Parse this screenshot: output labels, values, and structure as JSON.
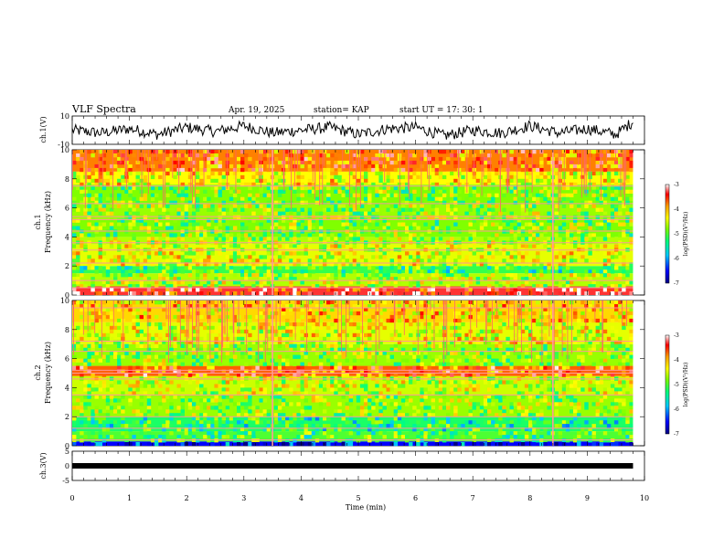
{
  "header": {
    "title": "VLF Spectra",
    "date": "Apr. 19, 2025",
    "station": "station= KAP",
    "start": "start  UT  =   17: 30: 1"
  },
  "colors": {
    "spectrum_scale": [
      "#000080",
      "#0000ff",
      "#00c8ff",
      "#00ff80",
      "#80ff00",
      "#ffff00",
      "#ffa000",
      "#ff0000",
      "#ffffff"
    ],
    "trace": "#000000"
  },
  "chart_data": [
    {
      "type": "line",
      "panel": "ch1-waveform",
      "ylabel": "ch.1(V)",
      "ylim": [
        -10,
        10
      ],
      "yticks": [
        "10",
        "-10"
      ],
      "xlim": [
        0,
        10
      ],
      "series": [
        {
          "x": [
            0,
            0.5,
            1,
            1.5,
            2,
            2.5,
            3,
            3.5,
            4,
            4.5,
            5,
            5.5,
            6,
            6.5,
            7,
            7.5,
            8,
            8.5,
            9,
            9.5,
            9.8
          ],
          "values": [
            0,
            -2,
            1,
            -3,
            2,
            -1,
            3,
            -2,
            0,
            2,
            -3,
            1,
            2,
            -4,
            0,
            -2,
            3,
            -2,
            1,
            -3,
            6
          ]
        }
      ]
    },
    {
      "type": "heatmap",
      "panel": "ch1-spectrogram",
      "ylabel": "ch.1\nFrequency (kHz)",
      "ylabel_line1": "ch.1",
      "ylabel_line2": "Frequency (kHz)",
      "ylim": [
        0,
        10
      ],
      "yticks": [
        "0",
        "2",
        "4",
        "6",
        "8",
        "10"
      ],
      "xlim": [
        0,
        9.8
      ],
      "colorbar": {
        "label": "log(PSD)(V²/Hz)",
        "range": [
          -7,
          -3
        ],
        "ticks": [
          "-3",
          "-4",
          "-5",
          "-6",
          "-7"
        ]
      },
      "bands_khz": [
        {
          "from": 0,
          "to": 0.6,
          "level": -3.4
        },
        {
          "from": 0.6,
          "to": 1.5,
          "level": -4.8
        },
        {
          "from": 1.5,
          "to": 2.0,
          "level": -5.3
        },
        {
          "from": 2.0,
          "to": 3.5,
          "level": -4.6
        },
        {
          "from": 3.5,
          "to": 4.0,
          "level": -4.8
        },
        {
          "from": 4.0,
          "to": 5.2,
          "level": -5.0
        },
        {
          "from": 5.2,
          "to": 6.2,
          "level": -4.9
        },
        {
          "from": 6.2,
          "to": 7.6,
          "level": -5.0
        },
        {
          "from": 7.6,
          "to": 8.5,
          "level": -4.5
        },
        {
          "from": 8.5,
          "to": 10,
          "level": -3.9
        }
      ],
      "lines_khz": [
        0.5,
        1.0,
        2.2,
        3.1,
        3.6,
        4.4,
        5.2,
        5.4,
        6.3,
        7.5
      ],
      "bursts_min": [
        3.5,
        8.4
      ]
    },
    {
      "type": "heatmap",
      "panel": "ch2-spectrogram",
      "ylabel": "ch.2\nFrequency (kHz)",
      "ylabel_line1": "ch.2",
      "ylabel_line2": "Frequency (kHz)",
      "ylim": [
        0,
        10
      ],
      "yticks": [
        "0",
        "2",
        "4",
        "6",
        "8",
        "10"
      ],
      "xlim": [
        0,
        9.8
      ],
      "colorbar": {
        "label": "log(PSD)(V²/Hz)",
        "range": [
          -7,
          -3
        ],
        "ticks": [
          "-3",
          "-4",
          "-5",
          "-6",
          "-7"
        ]
      },
      "bands_khz": [
        {
          "from": 0,
          "to": 0.3,
          "level": -6.5
        },
        {
          "from": 0.3,
          "to": 1.0,
          "level": -5.2
        },
        {
          "from": 1.0,
          "to": 2.0,
          "level": -5.4
        },
        {
          "from": 2.0,
          "to": 3.5,
          "level": -4.9
        },
        {
          "from": 3.5,
          "to": 4.8,
          "level": -4.7
        },
        {
          "from": 4.8,
          "to": 5.5,
          "level": -3.8
        },
        {
          "from": 5.5,
          "to": 7.0,
          "level": -4.9
        },
        {
          "from": 7.0,
          "to": 8.5,
          "level": -4.6
        },
        {
          "from": 8.5,
          "to": 10,
          "level": -4.3
        }
      ],
      "lines_khz": [
        0.4,
        1.2,
        2.0,
        3.5,
        4.6,
        5.0,
        5.2,
        6.5,
        7.2,
        9.5
      ],
      "bursts_min": [
        3.5,
        8.4
      ]
    },
    {
      "type": "line",
      "panel": "ch3-waveform",
      "ylabel": "ch.3(V)",
      "ylim": [
        -5,
        5
      ],
      "yticks": [
        "5",
        "0",
        "-5"
      ],
      "xlim": [
        0,
        10
      ],
      "series": [
        {
          "x": [
            0,
            9.8
          ],
          "values": [
            0,
            0
          ]
        }
      ]
    }
  ],
  "xaxis": {
    "label": "Time  (min)",
    "ticks": [
      "0",
      "1",
      "2",
      "3",
      "4",
      "5",
      "6",
      "7",
      "8",
      "9",
      "10"
    ]
  }
}
